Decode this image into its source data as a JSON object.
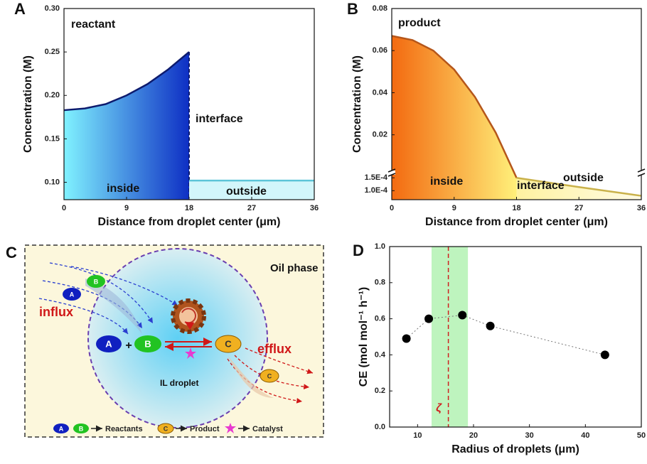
{
  "chart_data": [
    {
      "type": "area",
      "panel_label": "A",
      "xlabel": "Distance from droplet center (μm)",
      "ylabel": "Concentration (M)",
      "xlim": [
        0,
        36
      ],
      "xticks": [
        0,
        9,
        18,
        27,
        36
      ],
      "ylim": [
        0.08,
        0.3
      ],
      "yticks": [
        {
          "value": 0.1,
          "label": "0.10"
        },
        0.15,
        {
          "value": 0.2,
          "label": "0.20"
        },
        0.25,
        {
          "value": 0.3,
          "label": "0.30"
        }
      ],
      "series": [
        {
          "color": "#0d1b6e",
          "x": [
            0,
            3,
            6,
            9,
            12,
            15,
            18
          ],
          "values": [
            0.183,
            0.185,
            0.19,
            0.2,
            0.213,
            0.23,
            0.25
          ]
        },
        {
          "color": "#5cc4d8",
          "x": [
            18,
            36
          ],
          "values": [
            0.102,
            0.102
          ]
        }
      ],
      "annotations": [
        "reactant",
        "interface",
        "inside",
        "outside"
      ]
    },
    {
      "type": "area",
      "panel_label": "B",
      "xlabel": "Distance from droplet center (μm)",
      "ylabel": "Concentration (M)",
      "xlim": [
        0,
        36
      ],
      "xticks": [
        0,
        9,
        18,
        27,
        36
      ],
      "ylim": [
        6.5e-05,
        0.08
      ],
      "ybreak": [
        0.00017,
        0.002
      ],
      "yticks": [
        {
          "value": 0.0001,
          "label": "1.0E-4"
        },
        {
          "value": 0.00015,
          "label": "1.5E-4"
        },
        0.02,
        0.04,
        0.06,
        0.08
      ],
      "series": [
        {
          "color": "#b5561a",
          "x": [
            0,
            3,
            6,
            9,
            12,
            15,
            18
          ],
          "values": [
            0.067,
            0.065,
            0.06,
            0.051,
            0.038,
            0.021,
            0.00015
          ]
        },
        {
          "color": "#c9b14a",
          "x": [
            18,
            27,
            36
          ],
          "values": [
            0.00015,
            0.000114,
            8e-05
          ]
        }
      ],
      "annotations": [
        "product",
        "interface",
        "inside",
        "outside"
      ]
    },
    {
      "type": "line",
      "panel_label": "D",
      "xlabel": "Radius of droplets (μm)",
      "ylabel": "CE (mol mol⁻¹ h⁻¹)",
      "xlim": [
        5,
        50
      ],
      "xticks": [
        10,
        20,
        30,
        40,
        50
      ],
      "ylim": [
        0,
        1
      ],
      "yticks": [
        {
          "value": 0,
          "label": "0.0"
        },
        0.2,
        0.4,
        0.6,
        0.8,
        {
          "value": 1,
          "label": "1.0"
        }
      ],
      "x": [
        8,
        12,
        18,
        23,
        43.5
      ],
      "values": [
        0.49,
        0.6,
        0.62,
        0.56,
        0.4
      ],
      "color": "#000000",
      "shaded_x": [
        12.5,
        19
      ],
      "shade_color": "#a8f0a8",
      "vline_x": 15.5,
      "vline_color": "#d02020",
      "annotations": [
        "ζ"
      ]
    }
  ],
  "diagram": {
    "panel_label": "C",
    "phase_label": "Oil phase",
    "droplet_label": "IL droplet",
    "influx": "influx",
    "efflux": "efflux",
    "plus": "+",
    "molecules": [
      "A",
      "B",
      "C"
    ],
    "legend": [
      "Reactants",
      "Product",
      "Catalyst"
    ]
  }
}
